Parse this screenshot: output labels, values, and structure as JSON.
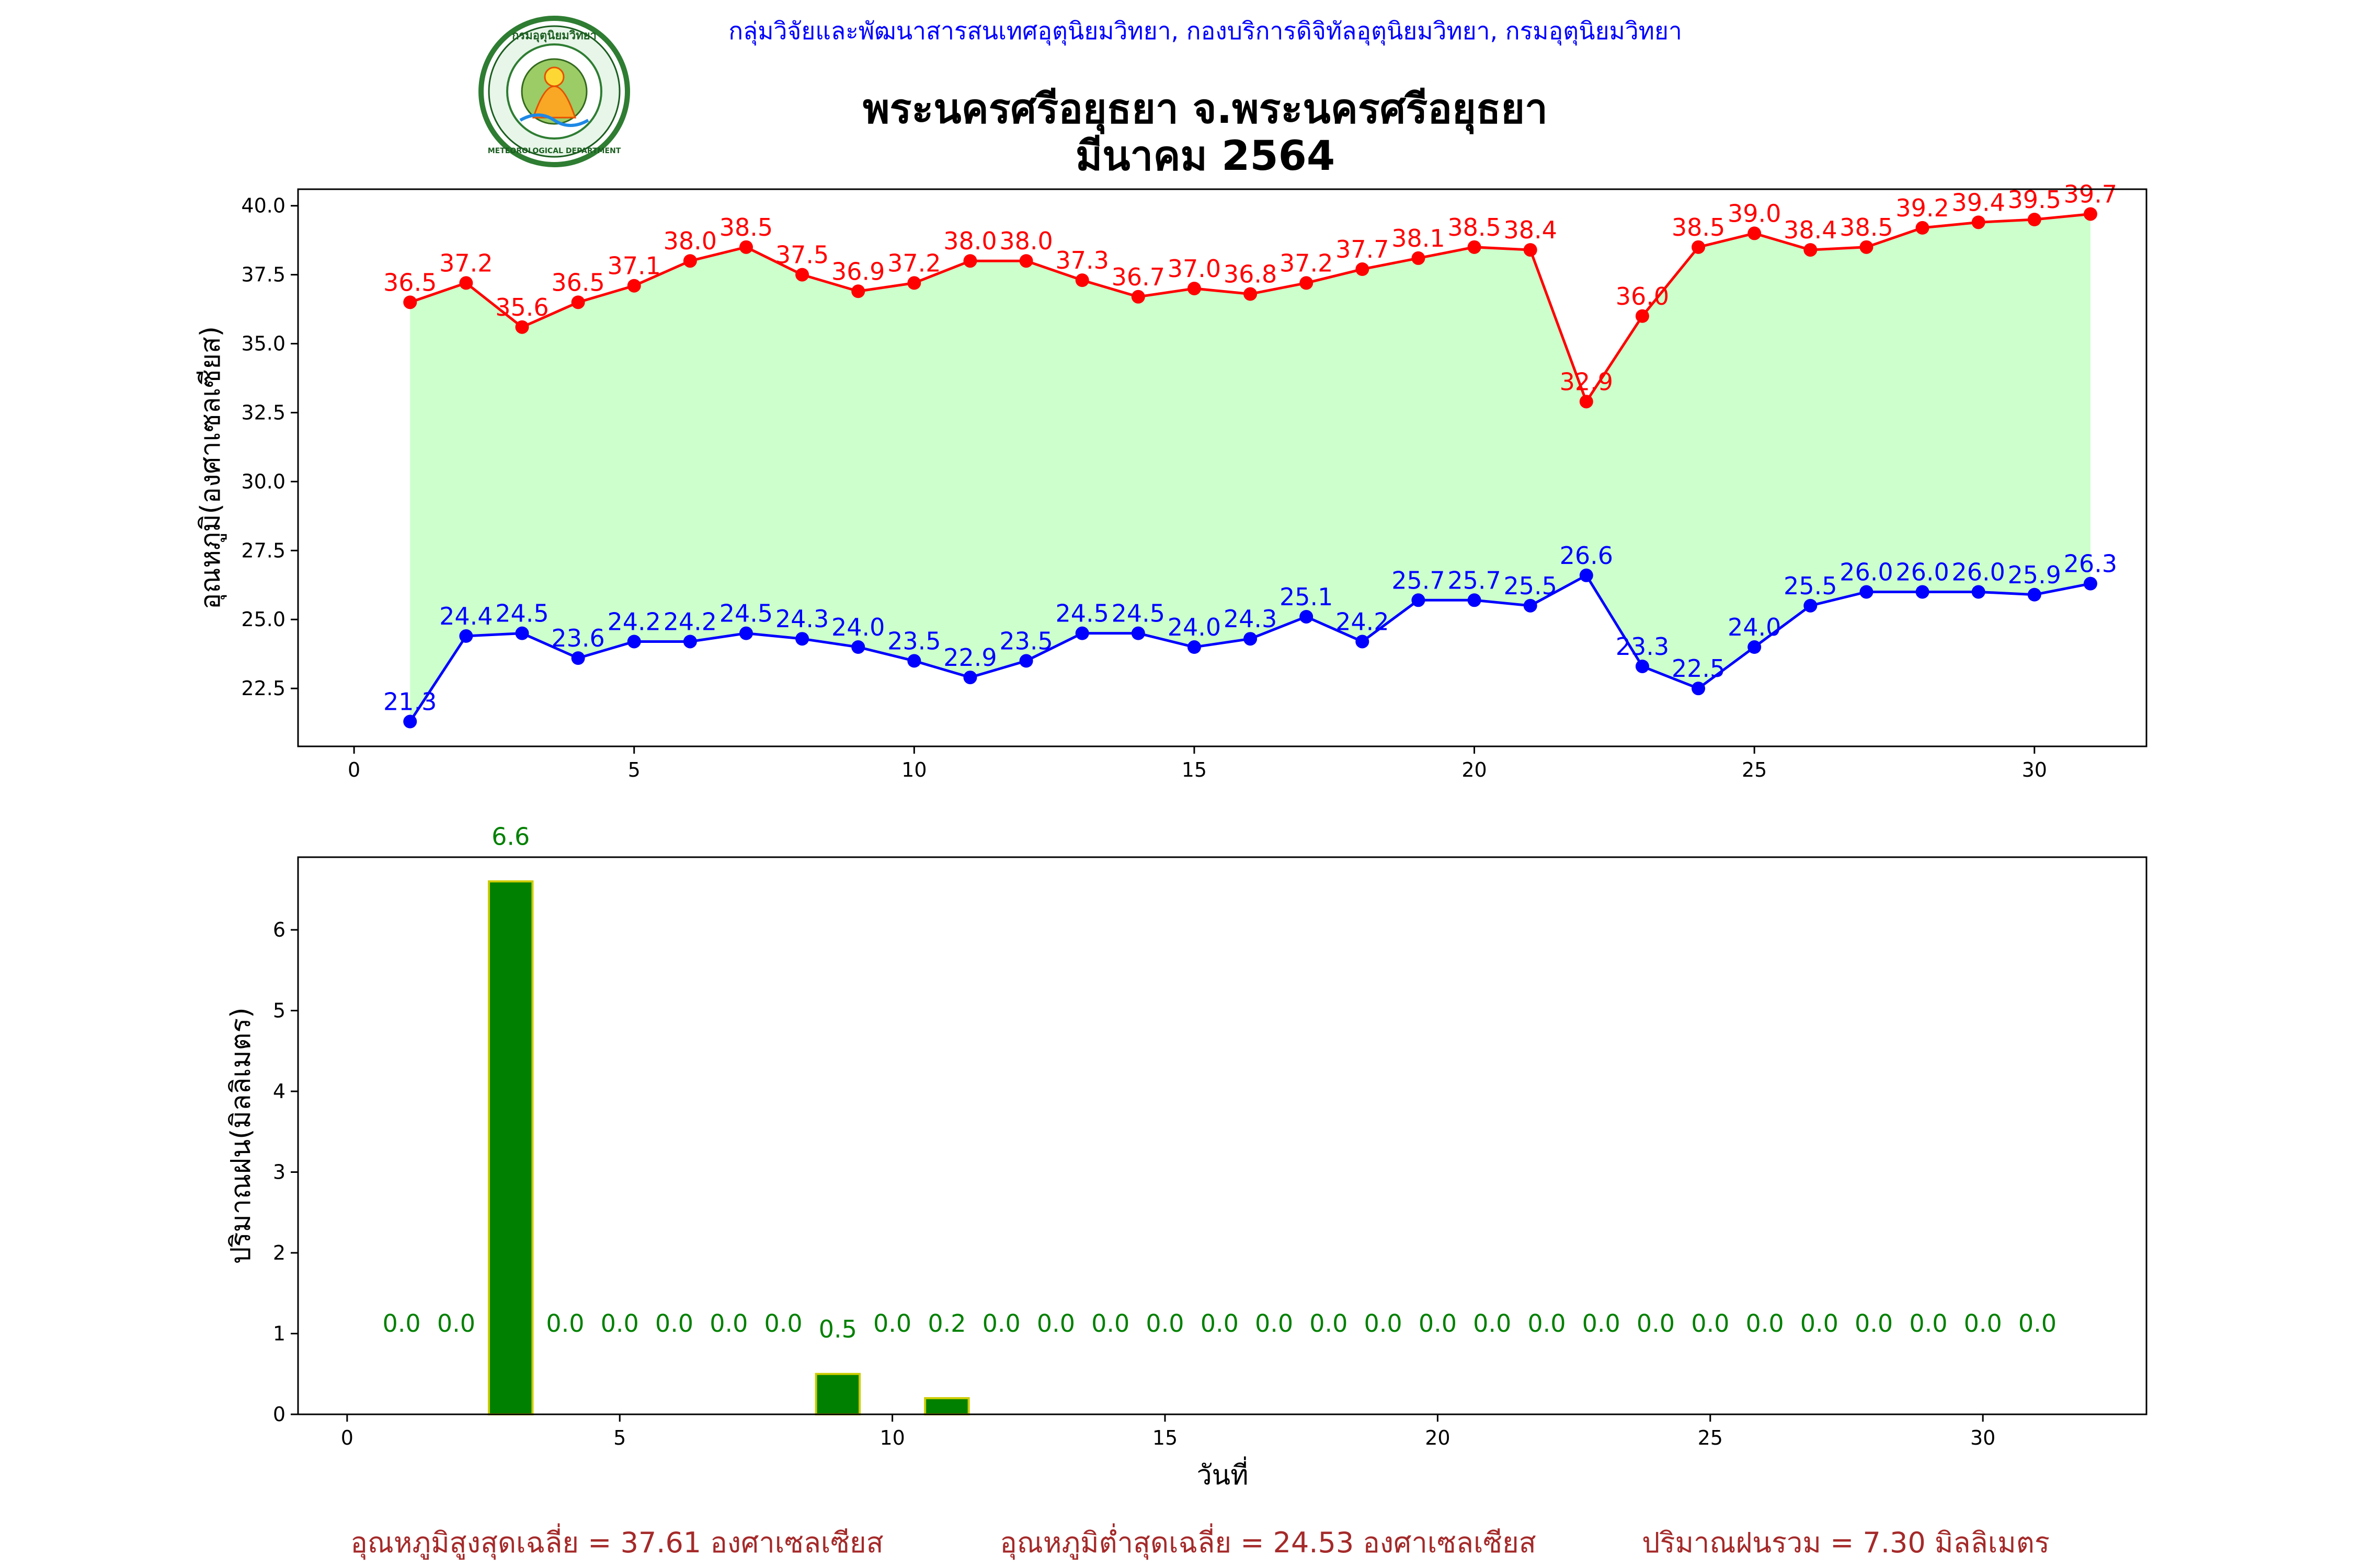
{
  "header": {
    "agency_line": "กลุ่มวิจัยและพัฒนาสารสนเทศอุตุนิยมวิทยา, กองบริการดิจิทัลอุตุนิยมวิทยา, กรมอุตุนิยมวิทยา",
    "title_line1": "พระนครศรีอยุธยา จ.พระนครศรีอยุธยา",
    "title_line2": "มีนาคม 2564",
    "logo": {
      "name": "meteorological-department-seal",
      "text_top": "กรมอุตุนิยมวิทยา",
      "text_bottom": "METEOROLOGICAL DEPARTMENT"
    }
  },
  "colors": {
    "agency_text": "#0000ff",
    "max_series": "#ff0000",
    "min_series": "#0000ff",
    "fill": "#ccffcc",
    "rain_bar": "#008000",
    "rain_bar_edge": "#cccc00",
    "rain_label": "#008000",
    "summary_text": "#a52a2a"
  },
  "chart_data": [
    {
      "type": "line",
      "xlabel": "",
      "ylabel": "อุณหภูมิ(องศาเซลเซียส)",
      "xlim": [
        -1,
        32
      ],
      "ylim": [
        20.4,
        40.6
      ],
      "x_ticks": [
        0,
        5,
        10,
        15,
        20,
        25,
        30
      ],
      "y_ticks": [
        22.5,
        25.0,
        27.5,
        30.0,
        32.5,
        35.0,
        37.5,
        40.0
      ],
      "y_tick_labels": [
        "22.5",
        "25.0",
        "27.5",
        "30.0",
        "32.5",
        "35.0",
        "37.5",
        "40.0"
      ],
      "grid": false,
      "fill_between": "max-min",
      "x": [
        1,
        2,
        3,
        4,
        5,
        6,
        7,
        8,
        9,
        10,
        11,
        12,
        13,
        14,
        15,
        16,
        17,
        18,
        19,
        20,
        21,
        22,
        23,
        24,
        25,
        26,
        27,
        28,
        29,
        30,
        31
      ],
      "series": [
        {
          "key": "max",
          "values": [
            36.5,
            37.2,
            35.6,
            36.5,
            37.1,
            38.0,
            38.5,
            37.5,
            36.9,
            37.2,
            38.0,
            38.0,
            37.3,
            36.7,
            37.0,
            36.8,
            37.2,
            37.7,
            38.1,
            38.5,
            38.4,
            32.9,
            36.0,
            38.5,
            39.0,
            38.4,
            38.5,
            39.2,
            39.4,
            39.5,
            39.7
          ],
          "labels": [
            "36.5",
            "37.2",
            "35.6",
            "36.5",
            "37.1",
            "38.0",
            "38.5",
            "37.5",
            "36.9",
            "37.2",
            "38.0",
            "38.0",
            "37.3",
            "36.7",
            "37.0",
            "36.8",
            "37.2",
            "37.7",
            "38.1",
            "38.5",
            "38.4",
            "32.9",
            "36.0",
            "38.5",
            "39.0",
            "38.4",
            "38.5",
            "39.2",
            "39.4",
            "39.5",
            "39.7"
          ]
        },
        {
          "key": "min",
          "values": [
            21.3,
            24.4,
            24.5,
            23.6,
            24.2,
            24.2,
            24.5,
            24.3,
            24.0,
            23.5,
            22.9,
            23.5,
            24.5,
            24.5,
            24.0,
            24.3,
            25.1,
            24.2,
            25.7,
            25.7,
            25.5,
            26.6,
            23.3,
            22.5,
            24.0,
            25.5,
            26.0,
            26.0,
            26.0,
            25.9,
            26.3
          ],
          "labels": [
            "21.3",
            "24.4",
            "24.5",
            "23.6",
            "24.2",
            "24.2",
            "24.5",
            "24.3",
            "24.0",
            "23.5",
            "22.9",
            "23.5",
            "24.5",
            "24.5",
            "24.0",
            "24.3",
            "25.1",
            "24.2",
            "25.7",
            "25.7",
            "25.5",
            "26.6",
            "23.3",
            "22.5",
            "24.0",
            "25.5",
            "26.0",
            "26.0",
            "26.0",
            "25.9",
            "26.3"
          ]
        }
      ]
    },
    {
      "type": "bar",
      "xlabel": "วันที่",
      "ylabel": "ปริมาณฝน(มิลลิเมตร)",
      "xlim": [
        -0.9,
        33
      ],
      "ylim": [
        0,
        6.9
      ],
      "x_ticks": [
        0,
        5,
        10,
        15,
        20,
        25,
        30
      ],
      "y_ticks": [
        0,
        1,
        2,
        3,
        4,
        5,
        6
      ],
      "grid": false,
      "x": [
        1,
        2,
        3,
        4,
        5,
        6,
        7,
        8,
        9,
        10,
        11,
        12,
        13,
        14,
        15,
        16,
        17,
        18,
        19,
        20,
        21,
        22,
        23,
        24,
        25,
        26,
        27,
        28,
        29,
        30,
        31
      ],
      "values": [
        0.0,
        0.0,
        6.6,
        0.0,
        0.0,
        0.0,
        0.0,
        0.0,
        0.5,
        0.0,
        0.2,
        0.0,
        0.0,
        0.0,
        0.0,
        0.0,
        0.0,
        0.0,
        0.0,
        0.0,
        0.0,
        0.0,
        0.0,
        0.0,
        0.0,
        0.0,
        0.0,
        0.0,
        0.0,
        0.0,
        0.0
      ],
      "labels": [
        "0.0",
        "0.0",
        "6.6",
        "0.0",
        "0.0",
        "0.0",
        "0.0",
        "0.0",
        "0.5",
        "0.0",
        "0.2",
        "0.0",
        "0.0",
        "0.0",
        "0.0",
        "0.0",
        "0.0",
        "0.0",
        "0.0",
        "0.0",
        "0.0",
        "0.0",
        "0.0",
        "0.0",
        "0.0",
        "0.0",
        "0.0",
        "0.0",
        "0.0",
        "0.0",
        "0.0"
      ]
    }
  ],
  "summary": {
    "avg_max": "อุณหภูมิสูงสุดเฉลี่ย = 37.61 องศาเซลเซียส",
    "avg_min": "อุณหภูมิต่ำสุดเฉลี่ย = 24.53 องศาเซลเซียส",
    "total_rain": "ปริมาณฝนรวม = 7.30 มิลลิเมตร"
  }
}
